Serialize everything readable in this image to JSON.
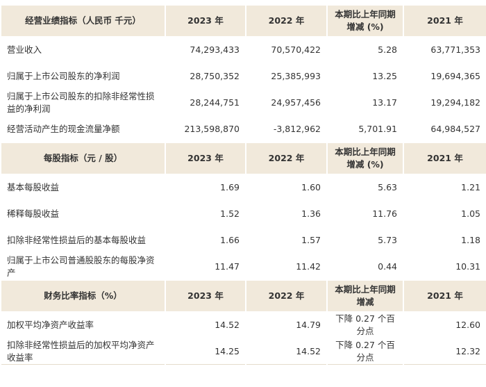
{
  "sections": [
    {
      "header": [
        "经营业绩指标（人民币 千元）",
        "2023 年",
        "2022 年",
        "本期比上年同期增减 (%)",
        "2021 年"
      ],
      "rows": [
        [
          "营业收入",
          "74,293,433",
          "70,570,422",
          "5.28",
          "63,771,353"
        ],
        [
          "归属于上市公司股东的净利润",
          "28,750,352",
          "25,385,993",
          "13.25",
          "19,694,365"
        ],
        [
          "归属于上市公司股东的扣除非经常性损益的净利润",
          "28,244,751",
          "24,957,456",
          "13.17",
          "19,294,182"
        ],
        [
          "经营活动产生的现金流量净额",
          "213,598,870",
          "-3,812,962",
          "5,701.91",
          "64,984,527"
        ]
      ]
    },
    {
      "header": [
        "每股指标（元 / 股）",
        "2023 年",
        "2022 年",
        "本期比上年同期增减 (%)",
        "2021 年"
      ],
      "rows": [
        [
          "基本每股收益",
          "1.69",
          "1.60",
          "5.63",
          "1.21"
        ],
        [
          "稀释每股收益",
          "1.52",
          "1.36",
          "11.76",
          "1.05"
        ],
        [
          "扣除非经常性损益后的基本每股收益",
          "1.66",
          "1.57",
          "5.73",
          "1.18"
        ],
        [
          "归属于上市公司普通股股东的每股净资产",
          "11.47",
          "11.42",
          "0.44",
          "10.31"
        ]
      ]
    },
    {
      "header": [
        "财务比率指标（%）",
        "2023 年",
        "2022 年",
        "本期比上年同期增减",
        "2021 年"
      ],
      "rows": [
        [
          "加权平均净资产收益率",
          "14.52",
          "14.79",
          "下降 0.27 个百分点",
          "12.60"
        ],
        [
          "扣除非经常性损益后的加权平均净资产收益率",
          "14.25",
          "14.52",
          "下降 0.27 个百分点",
          "12.32"
        ]
      ]
    }
  ]
}
